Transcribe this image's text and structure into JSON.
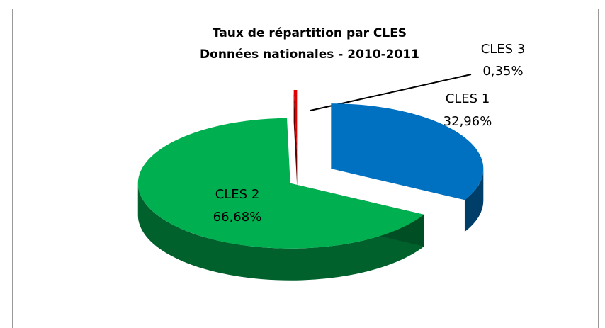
{
  "chart_data": {
    "type": "pie",
    "title": "Taux de répartition par CLES",
    "subtitle": "Données nationales - 2010-2011",
    "categories": [
      "CLES 1",
      "CLES 2",
      "CLES 3"
    ],
    "values": [
      32.96,
      66.68,
      0.35
    ],
    "value_labels": [
      "32,96%",
      "66,68%",
      "0,35%"
    ],
    "colors": [
      "#0070c0",
      "#00b050",
      "#e00000"
    ]
  }
}
